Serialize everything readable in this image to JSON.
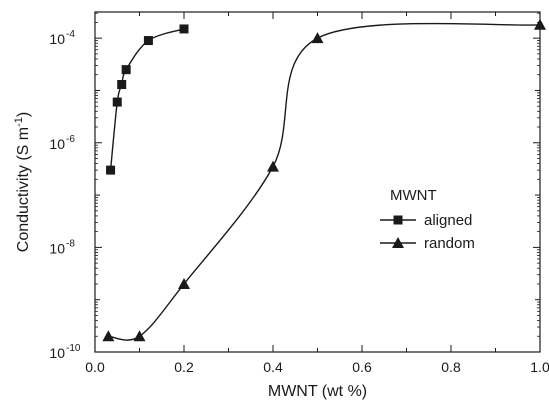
{
  "chart_data": {
    "type": "scatter",
    "title": "",
    "xlabel": "MWNT (wt %)",
    "ylabel_main": "Conductivity (S m",
    "ylabel_exp": "-1",
    "ylabel_close": ")",
    "xlim": [
      0.0,
      1.0
    ],
    "ylim_log10": [
      -10,
      -3.5
    ],
    "y_scale": "log10",
    "x_ticks": [
      {
        "value": 0.0,
        "label": "0.0"
      },
      {
        "value": 0.2,
        "label": "0.2"
      },
      {
        "value": 0.4,
        "label": "0.4"
      },
      {
        "value": 0.6,
        "label": "0.6"
      },
      {
        "value": 0.8,
        "label": "0.8"
      },
      {
        "value": 1.0,
        "label": "1.0"
      }
    ],
    "y_ticks": [
      {
        "exp": -10,
        "base": "10",
        "sup": "-10"
      },
      {
        "exp": -8,
        "base": "10",
        "sup": "-8"
      },
      {
        "exp": -6,
        "base": "10",
        "sup": "-6"
      },
      {
        "exp": -4,
        "base": "10",
        "sup": "-4"
      }
    ],
    "legend": {
      "title": "MWNT",
      "position": "right-middle"
    },
    "series": [
      {
        "name": "aligned",
        "marker": "square",
        "line": true,
        "x": [
          0.035,
          0.05,
          0.06,
          0.07,
          0.12,
          0.2
        ],
        "y": [
          3e-07,
          6e-06,
          1.3e-05,
          2.5e-05,
          9e-05,
          0.00015
        ]
      },
      {
        "name": "random",
        "marker": "triangle",
        "line": true,
        "x": [
          0.03,
          0.1,
          0.2,
          0.4,
          0.5,
          1.0
        ],
        "y": [
          2e-10,
          2e-10,
          2e-09,
          3.5e-07,
          0.0001,
          0.00018
        ]
      }
    ],
    "grid": false,
    "colors": {
      "ink": "#1a1a1a",
      "background": "#ffffff"
    }
  }
}
